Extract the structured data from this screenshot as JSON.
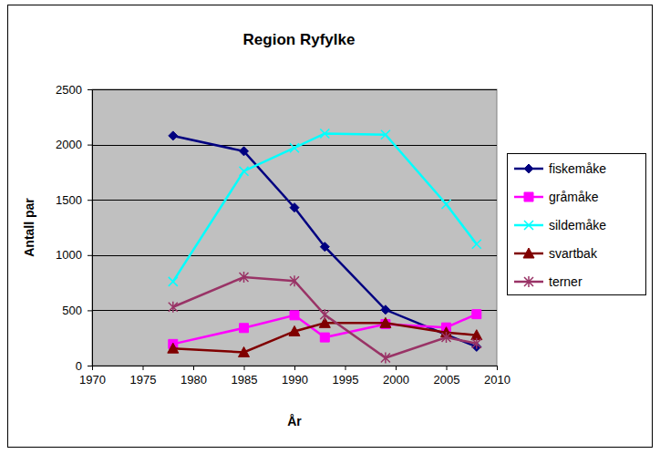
{
  "chart_data": {
    "type": "line",
    "title": "Region Ryfylke",
    "x_label": "År",
    "y_label": "Antall par",
    "x": [
      1978,
      1985,
      1990,
      1993,
      1999,
      2005,
      2008
    ],
    "series": [
      {
        "name": "fiskemåke",
        "color": "#000080",
        "marker": "diamond",
        "values": [
          2080,
          1940,
          1430,
          1075,
          505,
          280,
          170
        ]
      },
      {
        "name": "gråmåke",
        "color": "#ff00ff",
        "marker": "square",
        "values": [
          195,
          340,
          455,
          255,
          375,
          345,
          465
        ]
      },
      {
        "name": "sildemåke",
        "color": "#00ffff",
        "marker": "x",
        "values": [
          760,
          1760,
          1970,
          2100,
          2090,
          1460,
          1100
        ]
      },
      {
        "name": "svartbak",
        "color": "#800000",
        "marker": "triangle",
        "values": [
          155,
          120,
          310,
          385,
          385,
          300,
          275
        ]
      },
      {
        "name": "terner",
        "color": "#993366",
        "marker": "asterisk",
        "values": [
          530,
          800,
          765,
          460,
          70,
          255,
          200
        ]
      }
    ],
    "xlim": [
      1970,
      2010
    ],
    "xticks": [
      1970,
      1975,
      1980,
      1985,
      1990,
      1995,
      2000,
      2005,
      2010
    ],
    "ylim": [
      0,
      2500
    ],
    "yticks": [
      0,
      500,
      1000,
      1500,
      2000,
      2500
    ],
    "grid": true,
    "legend": "right"
  }
}
